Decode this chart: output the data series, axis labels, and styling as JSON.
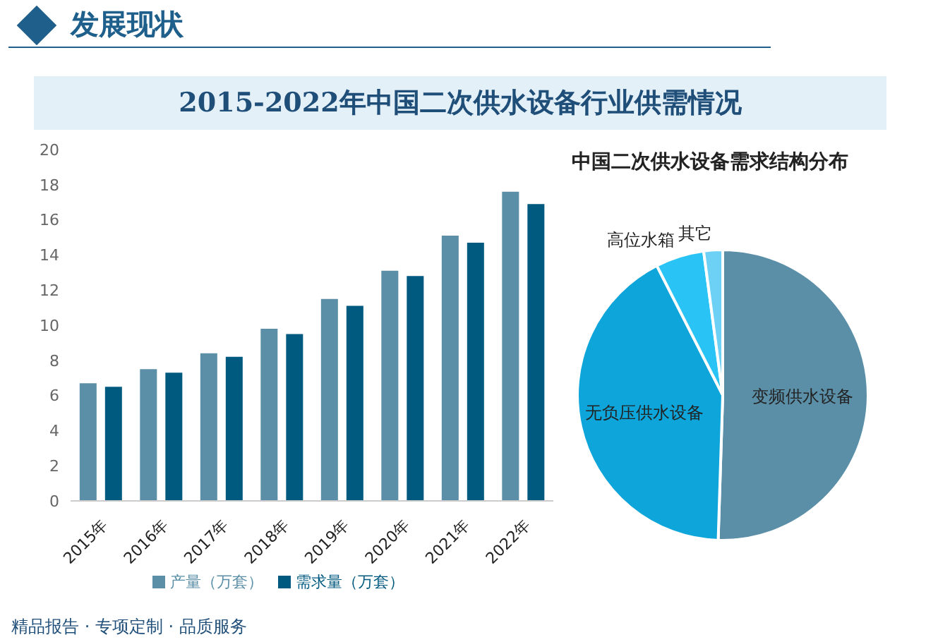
{
  "chart_data": [
    {
      "type": "bar",
      "title": "2015-2022年中国二次供水设备行业供需情况",
      "categories": [
        "2015年",
        "2016年",
        "2017年",
        "2018年",
        "2019年",
        "2020年",
        "2021年",
        "2022年"
      ],
      "series": [
        {
          "name": "产量（万套）",
          "color": "#5b8fa8",
          "values": [
            6.7,
            7.5,
            8.4,
            9.8,
            11.5,
            13.1,
            15.1,
            17.6
          ]
        },
        {
          "name": "需求量（万套）",
          "color": "#005a80",
          "values": [
            6.5,
            7.3,
            8.2,
            9.5,
            11.1,
            12.8,
            14.7,
            16.9
          ]
        }
      ],
      "ylim": [
        0,
        20
      ],
      "yticks": [
        0,
        2,
        4,
        6,
        8,
        10,
        12,
        14,
        16,
        18,
        20
      ],
      "grid": false,
      "legend": "bottom",
      "annotations": [
        "发展现状",
        "精品报告 · 专项定制 · 品质服务"
      ]
    },
    {
      "type": "pie",
      "title": "中国二次供水设备需求结构分布",
      "categories": [
        "变频供水设备",
        "无负压供水设备",
        "高位水箱",
        "其它"
      ],
      "values": [
        50.5,
        42,
        5.4,
        2.1
      ],
      "colors": [
        "#5b8fa8",
        "#0ea5db",
        "#29c4f5",
        "#6dd0f5"
      ],
      "legend": false
    }
  ]
}
